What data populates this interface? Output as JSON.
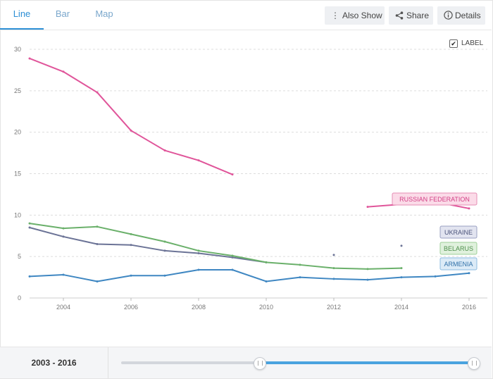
{
  "tabs": [
    {
      "label": "Line",
      "active": true
    },
    {
      "label": "Bar",
      "active": false
    },
    {
      "label": "Map",
      "active": false
    }
  ],
  "toolbar": {
    "also_show": {
      "label": "Also Show",
      "icon": "vertical-dots-icon"
    },
    "share": {
      "label": "Share",
      "icon": "share-icon"
    },
    "details": {
      "label": "Details",
      "icon": "info-icon"
    }
  },
  "label_toggle": {
    "label": "LABEL",
    "checked": true
  },
  "footer": {
    "range": {
      "start": "2003",
      "separator": "-",
      "end": "2016"
    },
    "slider": {
      "min": 2003,
      "max": 2016,
      "start": 2003,
      "end": 2016
    }
  },
  "chart_data": {
    "type": "line",
    "ylim": [
      0,
      30
    ],
    "y_ticks": [
      0,
      5,
      10,
      15,
      20,
      25,
      30
    ],
    "xlim": [
      2003,
      2016
    ],
    "x_ticks": [
      2004,
      2006,
      2008,
      2010,
      2012,
      2014,
      2016
    ],
    "grid": true,
    "series": [
      {
        "name": "RUSSIAN FEDERATION",
        "color": "#e0559a",
        "label_bg": "#fbdbe8",
        "label_border": "#e58db5",
        "label_color": "#d23f85",
        "values": [
          [
            2003,
            28.9
          ],
          [
            2004,
            27.3
          ],
          [
            2005,
            24.8
          ],
          [
            2006,
            20.2
          ],
          [
            2007,
            17.8
          ],
          [
            2008,
            16.6
          ],
          [
            2009,
            14.9
          ],
          [
            2010,
            null
          ],
          [
            2011,
            null
          ],
          [
            2012,
            null
          ],
          [
            2013,
            11.0
          ],
          [
            2014,
            11.3
          ],
          [
            2015,
            11.6
          ],
          [
            2016,
            10.8
          ]
        ]
      },
      {
        "name": "UKRAINE",
        "color": "#6b7396",
        "label_bg": "#e2e4f0",
        "label_border": "#9aa0c2",
        "label_color": "#4b537a",
        "values": [
          [
            2003,
            8.5
          ],
          [
            2004,
            7.4
          ],
          [
            2005,
            6.5
          ],
          [
            2006,
            6.4
          ],
          [
            2007,
            5.7
          ],
          [
            2008,
            5.4
          ],
          [
            2009,
            4.9
          ],
          [
            2010,
            4.3
          ],
          [
            2011,
            null
          ],
          [
            2012,
            5.2
          ],
          [
            2013,
            null
          ],
          [
            2014,
            6.3
          ],
          [
            2015,
            null
          ],
          [
            2016,
            null
          ]
        ]
      },
      {
        "name": "BELARUS",
        "color": "#6ab06a",
        "label_bg": "#e0f1dd",
        "label_border": "#9ccf97",
        "label_color": "#4f8f4d",
        "values": [
          [
            2003,
            9.0
          ],
          [
            2004,
            8.4
          ],
          [
            2005,
            8.6
          ],
          [
            2006,
            7.7
          ],
          [
            2007,
            6.8
          ],
          [
            2008,
            5.7
          ],
          [
            2009,
            5.1
          ],
          [
            2010,
            4.3
          ],
          [
            2011,
            4.0
          ],
          [
            2012,
            3.6
          ],
          [
            2013,
            3.5
          ],
          [
            2014,
            3.6
          ],
          [
            2015,
            null
          ],
          [
            2016,
            null
          ]
        ]
      },
      {
        "name": "ARMENIA",
        "color": "#3f87c2",
        "label_bg": "#dcebf7",
        "label_border": "#8bbbe0",
        "label_color": "#2f70a8",
        "values": [
          [
            2003,
            2.6
          ],
          [
            2004,
            2.8
          ],
          [
            2005,
            2.0
          ],
          [
            2006,
            2.7
          ],
          [
            2007,
            2.7
          ],
          [
            2008,
            3.4
          ],
          [
            2009,
            3.4
          ],
          [
            2010,
            2.0
          ],
          [
            2011,
            2.5
          ],
          [
            2012,
            2.3
          ],
          [
            2013,
            2.2
          ],
          [
            2014,
            2.5
          ],
          [
            2015,
            2.6
          ],
          [
            2016,
            3.0
          ]
        ]
      }
    ]
  }
}
